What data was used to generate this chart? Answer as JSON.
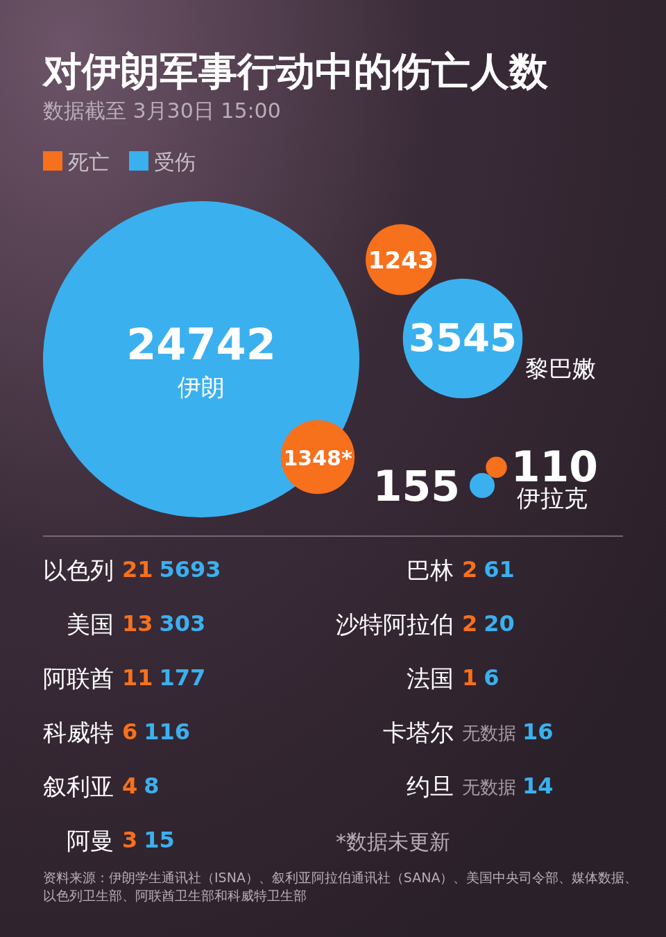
{
  "chart_data": {
    "type": "other",
    "title": "对伊朗军事行动中的伤亡人数",
    "subtitle": "数据截至 3月30日 15:00",
    "legend": "top left",
    "categories": [
      "伊朗",
      "黎巴嫩",
      "伊拉克",
      "以色列",
      "美国",
      "阿联酋",
      "科威特",
      "叙利亚",
      "阿曼",
      "巴林",
      "沙特阿拉伯",
      "法国",
      "卡塔尔",
      "约旦"
    ],
    "series": [
      {
        "name": "死亡",
        "color": "#f7701c",
        "values": [
          1348,
          1243,
          110,
          21,
          13,
          11,
          6,
          4,
          3,
          2,
          2,
          1,
          null,
          null
        ],
        "value_labels": [
          "1348*",
          "1243",
          "110",
          "21",
          "13",
          "11",
          "6",
          "4",
          "3",
          "2",
          "2",
          "1",
          "无数据",
          "无数据"
        ]
      },
      {
        "name": "受伤",
        "color": "#3bb0ef",
        "values": [
          24742,
          3545,
          155,
          5693,
          303,
          177,
          116,
          8,
          15,
          61,
          20,
          6,
          16,
          14
        ],
        "value_labels": [
          "24742",
          "3545",
          "155",
          "5693",
          "303",
          "177",
          "116",
          "8",
          "15",
          "61",
          "20",
          "6",
          "16",
          "14"
        ]
      }
    ],
    "annotations": [
      "*数据未更新",
      "资料来源：伊朗学生通讯社（ISNA）、叙利亚阿拉伯通讯社（SANA）、美国中央司令部、媒体数据、以色列卫生部、阿联酋卫生部和科威特卫生部"
    ]
  }
}
